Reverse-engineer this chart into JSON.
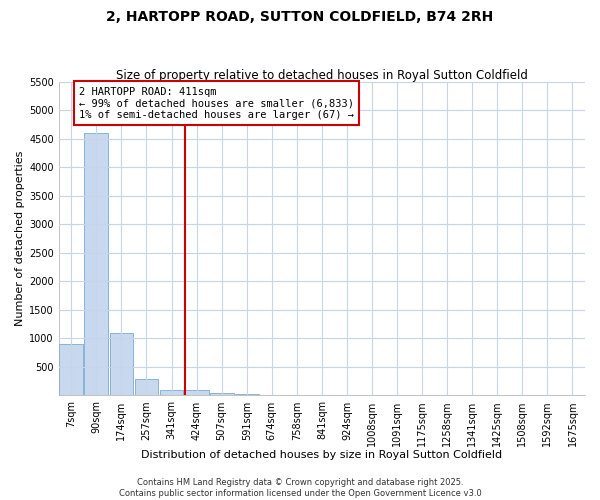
{
  "title": "2, HARTOPP ROAD, SUTTON COLDFIELD, B74 2RH",
  "subtitle": "Size of property relative to detached houses in Royal Sutton Coldfield",
  "xlabel": "Distribution of detached houses by size in Royal Sutton Coldfield",
  "ylabel": "Number of detached properties",
  "annotation_line1": "2 HARTOPP ROAD: 411sqm",
  "annotation_line2": "← 99% of detached houses are smaller (6,833)",
  "annotation_line3": "1% of semi-detached houses are larger (67) →",
  "bar_color": "#c8d8ee",
  "bar_edge_color": "#7aaad0",
  "vline_color": "#cc0000",
  "annotation_box_edgecolor": "#cc0000",
  "annotation_box_facecolor": "#ffffff",
  "background_color": "#ffffff",
  "grid_color": "#c8d4e8",
  "bins": [
    "7sqm",
    "90sqm",
    "174sqm",
    "257sqm",
    "341sqm",
    "424sqm",
    "507sqm",
    "591sqm",
    "674sqm",
    "758sqm",
    "841sqm",
    "924sqm",
    "1008sqm",
    "1091sqm",
    "1175sqm",
    "1258sqm",
    "1341sqm",
    "1425sqm",
    "1508sqm",
    "1592sqm",
    "1675sqm"
  ],
  "values": [
    900,
    4600,
    1090,
    290,
    90,
    90,
    50,
    30,
    5,
    2,
    1,
    0,
    0,
    0,
    0,
    0,
    0,
    0,
    0,
    0,
    0
  ],
  "ylim": [
    0,
    5500
  ],
  "yticks": [
    0,
    500,
    1000,
    1500,
    2000,
    2500,
    3000,
    3500,
    4000,
    4500,
    5000,
    5500
  ],
  "vline_x_bin": 4.55,
  "footer": "Contains HM Land Registry data © Crown copyright and database right 2025.\nContains public sector information licensed under the Open Government Licence v3.0",
  "title_fontsize": 10,
  "subtitle_fontsize": 8.5,
  "axis_label_fontsize": 8,
  "tick_fontsize": 7,
  "footer_fontsize": 6,
  "annotation_fontsize": 7.5
}
